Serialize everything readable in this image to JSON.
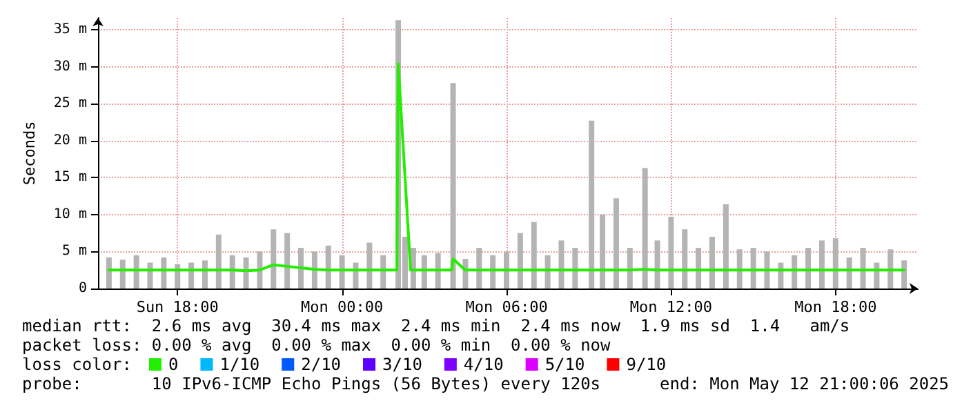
{
  "chart_data": {
    "type": "line",
    "ylabel": "Seconds",
    "legend_title": "loss color:",
    "legend": "bottom",
    "grid": true,
    "marker": "none",
    "line_style": "solid",
    "xlim": [
      "2025-05-11T15:06",
      "2025-05-12T21:00"
    ],
    "xticks": [
      {
        "value": "2025-05-11T18:00",
        "label": "Sun 18:00"
      },
      {
        "value": "2025-05-12T00:00",
        "label": "Mon 00:00"
      },
      {
        "value": "2025-05-12T06:00",
        "label": "Mon 06:00"
      },
      {
        "value": "2025-05-12T12:00",
        "label": "Mon 12:00"
      },
      {
        "value": "2025-05-12T18:00",
        "label": "Mon 18:00"
      }
    ],
    "ylim": [
      0,
      36.6
    ],
    "yticks": [
      {
        "value": 0,
        "label": "0"
      },
      {
        "value": 5,
        "label": "5 m"
      },
      {
        "value": 10,
        "label": "10 m"
      },
      {
        "value": 15,
        "label": "15 m"
      },
      {
        "value": 20,
        "label": "20 m"
      },
      {
        "value": 25,
        "label": "25 m"
      },
      {
        "value": 30,
        "label": "30 m"
      },
      {
        "value": 35,
        "label": "35 m"
      }
    ],
    "series": [
      {
        "type": "bar",
        "color": "#b4b4b4",
        "x": [
          "2025-05-11T15:30",
          "2025-05-11T16:00",
          "2025-05-11T16:30",
          "2025-05-11T17:00",
          "2025-05-11T17:30",
          "2025-05-11T18:00",
          "2025-05-11T18:30",
          "2025-05-11T19:00",
          "2025-05-11T19:30",
          "2025-05-11T20:00",
          "2025-05-11T20:30",
          "2025-05-11T21:00",
          "2025-05-11T21:30",
          "2025-05-11T22:00",
          "2025-05-11T22:30",
          "2025-05-11T23:00",
          "2025-05-11T23:30",
          "2025-05-12T00:00",
          "2025-05-12T00:30",
          "2025-05-12T01:00",
          "2025-05-12T01:30",
          "2025-05-12T02:03",
          "2025-05-12T02:18",
          "2025-05-12T02:36",
          "2025-05-12T03:00",
          "2025-05-12T03:30",
          "2025-05-12T04:03",
          "2025-05-12T04:30",
          "2025-05-12T05:00",
          "2025-05-12T05:30",
          "2025-05-12T06:00",
          "2025-05-12T06:30",
          "2025-05-12T07:00",
          "2025-05-12T07:30",
          "2025-05-12T08:00",
          "2025-05-12T08:30",
          "2025-05-12T09:06",
          "2025-05-12T09:30",
          "2025-05-12T10:00",
          "2025-05-12T10:30",
          "2025-05-12T11:03",
          "2025-05-12T11:30",
          "2025-05-12T12:00",
          "2025-05-12T12:30",
          "2025-05-12T13:00",
          "2025-05-12T13:30",
          "2025-05-12T14:00",
          "2025-05-12T14:30",
          "2025-05-12T15:00",
          "2025-05-12T15:30",
          "2025-05-12T16:00",
          "2025-05-12T16:30",
          "2025-05-12T17:00",
          "2025-05-12T17:30",
          "2025-05-12T18:00",
          "2025-05-12T18:30",
          "2025-05-12T19:00",
          "2025-05-12T19:30",
          "2025-05-12T20:00",
          "2025-05-12T20:30"
        ],
        "values": [
          4.2,
          3.9,
          4.5,
          3.5,
          4.2,
          3.3,
          3.5,
          3.8,
          7.3,
          4.5,
          4.2,
          5,
          8,
          7.5,
          5.5,
          5,
          5.8,
          4.5,
          3.5,
          6.2,
          4.5,
          36.3,
          7,
          5.5,
          4.5,
          4.8,
          27.8,
          4,
          5.5,
          4.5,
          5,
          7.5,
          9,
          4.5,
          6.5,
          5.5,
          22.7,
          10,
          12.2,
          5.5,
          16.3,
          6.5,
          9.7,
          8,
          5.5,
          7,
          11.4,
          5.3,
          5.5,
          5,
          3.5,
          4.5,
          5.5,
          6.5,
          6.8,
          4.2,
          5.5,
          3.5,
          5.3,
          3.8
        ]
      },
      {
        "name": "0",
        "color": "#22ee00",
        "x": [
          "2025-05-11T15:30",
          "2025-05-11T16:00",
          "2025-05-11T16:30",
          "2025-05-11T17:00",
          "2025-05-11T17:30",
          "2025-05-11T18:00",
          "2025-05-11T18:30",
          "2025-05-11T19:00",
          "2025-05-11T19:30",
          "2025-05-11T20:00",
          "2025-05-11T20:30",
          "2025-05-11T21:00",
          "2025-05-11T21:30",
          "2025-05-11T22:00",
          "2025-05-11T22:30",
          "2025-05-11T23:00",
          "2025-05-11T23:30",
          "2025-05-12T00:00",
          "2025-05-12T00:30",
          "2025-05-12T01:00",
          "2025-05-12T01:30",
          "2025-05-12T02:00",
          "2025-05-12T02:03",
          "2025-05-12T02:30",
          "2025-05-12T03:00",
          "2025-05-12T03:30",
          "2025-05-12T04:00",
          "2025-05-12T04:03",
          "2025-05-12T04:30",
          "2025-05-12T05:00",
          "2025-05-12T05:30",
          "2025-05-12T06:00",
          "2025-05-12T06:30",
          "2025-05-12T07:00",
          "2025-05-12T07:30",
          "2025-05-12T08:00",
          "2025-05-12T08:30",
          "2025-05-12T09:00",
          "2025-05-12T09:30",
          "2025-05-12T10:00",
          "2025-05-12T10:30",
          "2025-05-12T11:00",
          "2025-05-12T11:30",
          "2025-05-12T12:00",
          "2025-05-12T12:30",
          "2025-05-12T13:00",
          "2025-05-12T13:30",
          "2025-05-12T14:00",
          "2025-05-12T14:30",
          "2025-05-12T15:00",
          "2025-05-12T15:30",
          "2025-05-12T16:00",
          "2025-05-12T16:30",
          "2025-05-12T17:00",
          "2025-05-12T17:30",
          "2025-05-12T18:00",
          "2025-05-12T18:30",
          "2025-05-12T19:00",
          "2025-05-12T19:30",
          "2025-05-12T20:00",
          "2025-05-12T20:30"
        ],
        "values": [
          2.5,
          2.5,
          2.5,
          2.5,
          2.5,
          2.5,
          2.5,
          2.5,
          2.5,
          2.5,
          2.4,
          2.5,
          3.2,
          3.0,
          2.8,
          2.6,
          2.5,
          2.5,
          2.5,
          2.5,
          2.5,
          2.5,
          30.4,
          2.5,
          2.5,
          2.5,
          2.5,
          4,
          2.5,
          2.5,
          2.5,
          2.5,
          2.5,
          2.5,
          2.5,
          2.5,
          2.5,
          2.5,
          2.5,
          2.5,
          2.5,
          2.6,
          2.5,
          2.5,
          2.5,
          2.5,
          2.5,
          2.5,
          2.5,
          2.5,
          2.5,
          2.5,
          2.5,
          2.5,
          2.5,
          2.5,
          2.5,
          2.5,
          2.5,
          2.5,
          2.5
        ]
      },
      {
        "name": "1/10",
        "color": "#00b8ff"
      },
      {
        "name": "2/10",
        "color": "#0059ff"
      },
      {
        "name": "3/10",
        "color": "#5e00ff"
      },
      {
        "name": "4/10",
        "color": "#7e00ff"
      },
      {
        "name": "5/10",
        "color": "#dd00ff"
      },
      {
        "name": "9/10",
        "color": "#ff0000"
      }
    ],
    "annotations": [
      "median rtt:  2.6 ms avg  30.4 ms max  2.4 ms min  2.4 ms now  1.9 ms sd  1.4   am/s",
      "packet loss: 0.00 % avg  0.00 % max  0.00 % min  0.00 % now",
      "probe:       10 IPv6-ICMP Echo Pings (56 Bytes) every 120s",
      "end: Mon May 12 21:00:06 2025"
    ]
  }
}
